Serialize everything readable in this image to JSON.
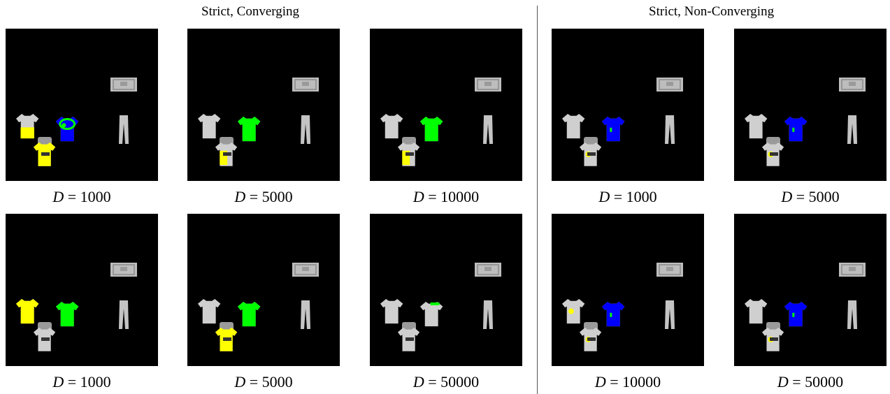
{
  "headings": {
    "left": "Strict, Converging",
    "right": "Strict, Non-Converging"
  },
  "colors": {
    "background": "#000000",
    "garment": "#cfcfcf",
    "yellow": "#ffff00",
    "green": "#00ff00",
    "blue": "#0000ff"
  },
  "panels": [
    {
      "group": "converging",
      "variable": "D",
      "relation": "=",
      "value": "1000",
      "shirt_left": "yellow-lower",
      "shirt_center": "blue-green",
      "shirt_bottom": "yellow"
    },
    {
      "group": "converging",
      "variable": "D",
      "relation": "=",
      "value": "5000",
      "shirt_left": "none",
      "shirt_center": "green",
      "shirt_bottom": "yellow-partial"
    },
    {
      "group": "converging",
      "variable": "D",
      "relation": "=",
      "value": "10000",
      "shirt_left": "none",
      "shirt_center": "green",
      "shirt_bottom": "yellow-partial"
    },
    {
      "group": "non-converging",
      "variable": "D",
      "relation": "=",
      "value": "1000",
      "shirt_left": "none",
      "shirt_center": "blue",
      "shirt_bottom": "yellow-speck"
    },
    {
      "group": "non-converging",
      "variable": "D",
      "relation": "=",
      "value": "5000",
      "shirt_left": "none",
      "shirt_center": "blue",
      "shirt_bottom": "yellow-speck"
    },
    {
      "group": "converging",
      "variable": "D",
      "relation": "=",
      "value": "1000",
      "shirt_left": "yellow",
      "shirt_center": "green",
      "shirt_bottom": "none"
    },
    {
      "group": "converging",
      "variable": "D",
      "relation": "=",
      "value": "5000",
      "shirt_left": "none",
      "shirt_center": "green",
      "shirt_bottom": "yellow"
    },
    {
      "group": "converging",
      "variable": "D",
      "relation": "=",
      "value": "50000",
      "shirt_left": "none",
      "shirt_center": "green-edge",
      "shirt_bottom": "none"
    },
    {
      "group": "non-converging",
      "variable": "D",
      "relation": "=",
      "value": "10000",
      "shirt_left": "yellow-speck",
      "shirt_center": "blue",
      "shirt_bottom": "yellow-speck"
    },
    {
      "group": "non-converging",
      "variable": "D",
      "relation": "=",
      "value": "50000",
      "shirt_left": "none",
      "shirt_center": "blue",
      "shirt_bottom": "yellow-speck"
    }
  ]
}
